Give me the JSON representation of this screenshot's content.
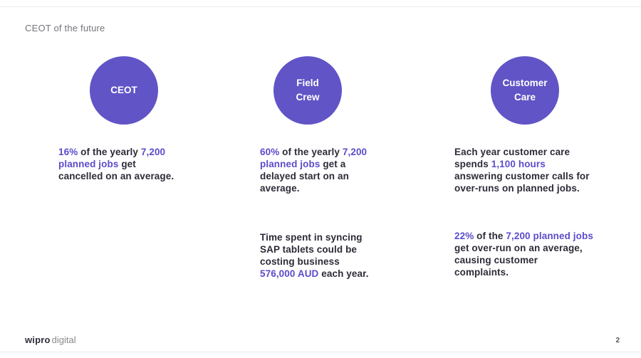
{
  "slide": {
    "title": "CEOT of the future",
    "page_number": "2",
    "footer": {
      "brand_bold": "wipro",
      "brand_light": "digital"
    }
  },
  "colors": {
    "accent_text": "#5b4ccc",
    "circle_fill": "#6154c6",
    "body_text": "#2e2b38",
    "title_gray": "#75747e"
  },
  "columns": [
    {
      "circle_label": "CEOT",
      "blocks": [
        {
          "segments": [
            {
              "text": "16%",
              "highlight": true
            },
            {
              "text": " of the yearly ",
              "highlight": false
            },
            {
              "text": "7,200\nplanned jobs",
              "highlight": true
            },
            {
              "text": " get\ncancelled on an average.",
              "highlight": false
            }
          ]
        }
      ]
    },
    {
      "circle_label": "Field\nCrew",
      "blocks": [
        {
          "segments": [
            {
              "text": "60%",
              "highlight": true
            },
            {
              "text": " of the yearly ",
              "highlight": false
            },
            {
              "text": "7,200\nplanned jobs",
              "highlight": true
            },
            {
              "text": " get a\ndelayed start on an\naverage.",
              "highlight": false
            }
          ]
        },
        {
          "segments": [
            {
              "text": "Time spent in syncing\nSAP tablets could be\ncosting business\n",
              "highlight": false
            },
            {
              "text": "576,000 AUD",
              "highlight": true
            },
            {
              "text": " each year.",
              "highlight": false
            }
          ]
        }
      ]
    },
    {
      "circle_label": "Customer\nCare",
      "blocks": [
        {
          "segments": [
            {
              "text": "Each year customer care\nspends ",
              "highlight": false
            },
            {
              "text": "1,100 hours",
              "highlight": true
            },
            {
              "text": "\nanswering customer calls for\nover-runs on planned jobs.",
              "highlight": false
            }
          ]
        },
        {
          "segments": [
            {
              "text": "22%",
              "highlight": true
            },
            {
              "text": " of the ",
              "highlight": false
            },
            {
              "text": "7,200 planned jobs",
              "highlight": true
            },
            {
              "text": "\nget over-run on an average,\ncausing customer\ncomplaints.",
              "highlight": false
            }
          ]
        }
      ]
    }
  ]
}
